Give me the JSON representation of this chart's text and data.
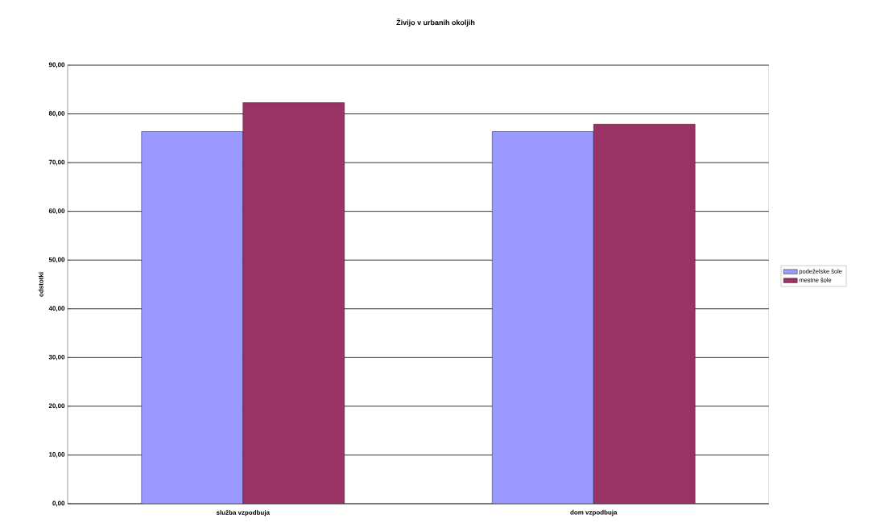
{
  "chart_data": {
    "type": "bar",
    "title": "Živijo v urbanih okoljih",
    "ylabel": "odstotki",
    "categories": [
      "služba vzpodbuja",
      "dom vzpodbuja"
    ],
    "series": [
      {
        "name": "podeželske šole",
        "color": "#9999ff",
        "values": [
          76.4,
          76.4
        ]
      },
      {
        "name": "mestne šole",
        "color": "#993366",
        "values": [
          82.3,
          77.9
        ]
      }
    ],
    "ylim": [
      0,
      90
    ],
    "yticks": [
      {
        "value": 0,
        "label": "0,00"
      },
      {
        "value": 10,
        "label": "10,00"
      },
      {
        "value": 20,
        "label": "20,00"
      },
      {
        "value": 30,
        "label": "30,00"
      },
      {
        "value": 40,
        "label": "40,00"
      },
      {
        "value": 50,
        "label": "50,00"
      },
      {
        "value": 60,
        "label": "60,00"
      },
      {
        "value": 70,
        "label": "70,00"
      },
      {
        "value": 80,
        "label": "80,00"
      },
      {
        "value": 90,
        "label": "90,00"
      }
    ],
    "grid": "y",
    "legend": "right"
  }
}
